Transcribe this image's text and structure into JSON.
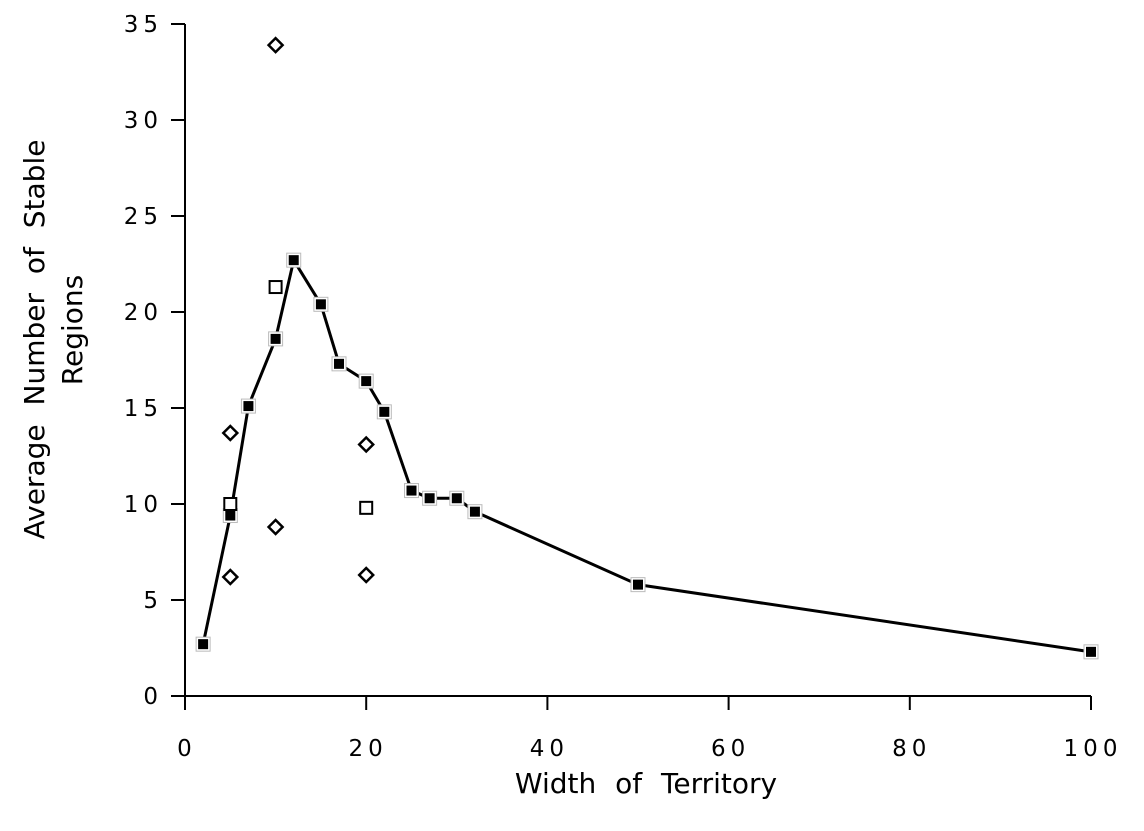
{
  "chart_data": {
    "type": "scatter",
    "title": "",
    "xlabel": "Width of Territory",
    "ylabel_lines": [
      "Average Number of Stable",
      "Regions"
    ],
    "xlim": [
      0,
      100
    ],
    "ylim": [
      0,
      35
    ],
    "x_ticks": [
      0,
      20,
      40,
      60,
      80,
      100
    ],
    "x_tick_labels": [
      "0",
      "20",
      "40",
      "60",
      "80",
      "100"
    ],
    "y_ticks": [
      0,
      5,
      10,
      15,
      20,
      25,
      30,
      35
    ],
    "y_tick_labels": [
      "0",
      "5",
      "10",
      "15",
      "20",
      "25",
      "30",
      "35"
    ],
    "grid": false,
    "legend": "none",
    "series": [
      {
        "marker": "filled-square",
        "line": true,
        "color": "#000000",
        "points": [
          {
            "x": 2,
            "y": 2.7
          },
          {
            "x": 5,
            "y": 9.4
          },
          {
            "x": 7,
            "y": 15.1
          },
          {
            "x": 10,
            "y": 18.6
          },
          {
            "x": 12,
            "y": 22.7
          },
          {
            "x": 15,
            "y": 20.4
          },
          {
            "x": 17,
            "y": 17.3
          },
          {
            "x": 20,
            "y": 16.4
          },
          {
            "x": 22,
            "y": 14.8
          },
          {
            "x": 25,
            "y": 10.7
          },
          {
            "x": 27,
            "y": 10.3
          },
          {
            "x": 30,
            "y": 10.3
          },
          {
            "x": 32,
            "y": 9.6
          },
          {
            "x": 50,
            "y": 5.8
          },
          {
            "x": 100,
            "y": 2.3
          }
        ]
      },
      {
        "marker": "open-square",
        "line": false,
        "color": "#000000",
        "points": [
          {
            "x": 5,
            "y": 10.0
          },
          {
            "x": 10,
            "y": 21.3
          },
          {
            "x": 20,
            "y": 9.8
          }
        ]
      },
      {
        "marker": "open-diamond",
        "line": false,
        "color": "#000000",
        "points": [
          {
            "x": 5,
            "y": 13.7
          },
          {
            "x": 5,
            "y": 6.2
          },
          {
            "x": 10,
            "y": 33.9
          },
          {
            "x": 10,
            "y": 8.8
          },
          {
            "x": 20,
            "y": 13.1
          },
          {
            "x": 20,
            "y": 6.3
          }
        ]
      }
    ]
  }
}
